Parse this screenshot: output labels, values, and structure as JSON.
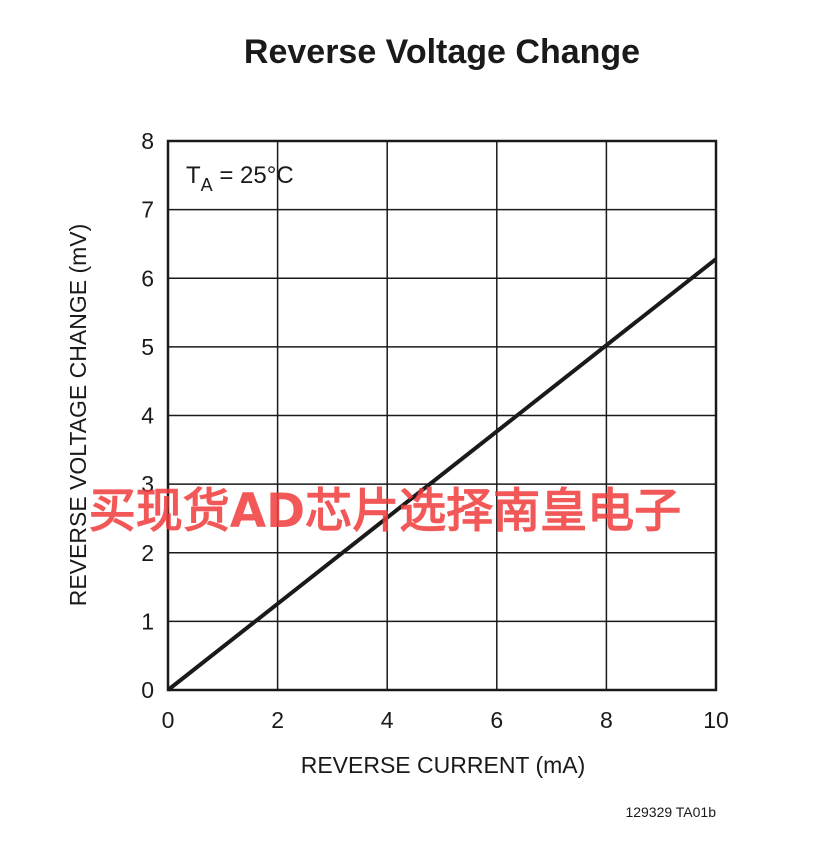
{
  "chart_data": {
    "type": "line",
    "title": "Reverse Voltage Change",
    "xlabel": "REVERSE CURRENT (mA)",
    "ylabel": "REVERSE VOLTAGE CHANGE (mV)",
    "xlim": [
      0,
      10
    ],
    "ylim": [
      0,
      8
    ],
    "x_ticks": [
      0,
      2,
      4,
      6,
      8,
      10
    ],
    "y_ticks": [
      0,
      1,
      2,
      3,
      4,
      5,
      6,
      7,
      8
    ],
    "grid": true,
    "annotation": {
      "main": "T",
      "sub": "A",
      "rest": " = 25°C"
    },
    "series": [
      {
        "x": [
          0,
          10
        ],
        "y": [
          0,
          6.28
        ]
      }
    ],
    "line_color": "#1a1a1a"
  },
  "figure_id": "129329 TA01b",
  "watermark": "买现货AD芯片选择南皇电子",
  "watermark_color": "#f23b3b"
}
